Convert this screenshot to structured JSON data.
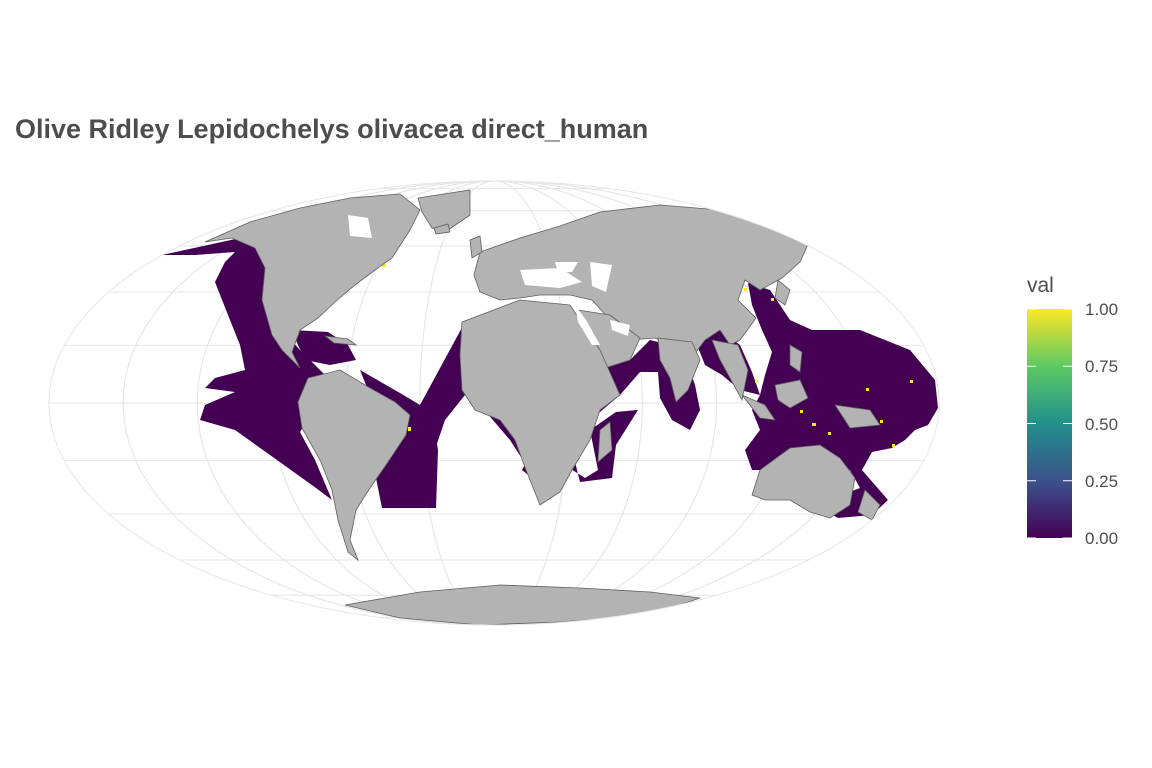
{
  "title": "Olive Ridley Lepidochelys olivacea direct_human",
  "colors": {
    "land": "#b3b3b3",
    "land_stroke": "#5f5f5f",
    "range_fill": "#440154",
    "high_value": "#fde725",
    "graticule": "#e6e6e6",
    "viridis": [
      "#440154",
      "#3b528b",
      "#21908c",
      "#5dc963",
      "#fde725"
    ]
  },
  "legend": {
    "title": "val",
    "ticks": [
      {
        "value": 1.0,
        "label": "1.00"
      },
      {
        "value": 0.75,
        "label": "0.75"
      },
      {
        "value": 0.5,
        "label": "0.50"
      },
      {
        "value": 0.25,
        "label": "0.25"
      },
      {
        "value": 0.0,
        "label": "0.00"
      }
    ],
    "range": [
      0,
      1
    ]
  },
  "projection": "mollweide"
}
